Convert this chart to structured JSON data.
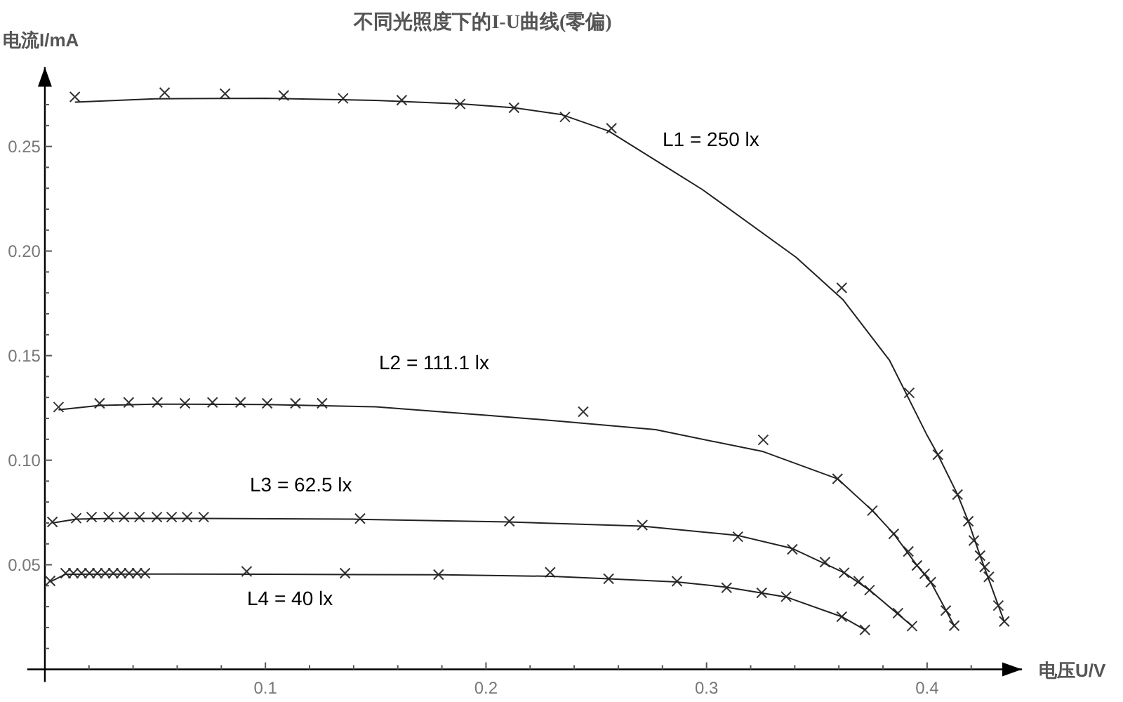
{
  "chart_data": {
    "type": "scatter",
    "title": "不同光照度下的I-U曲线(零偏)",
    "xlabel": "电压U/V",
    "ylabel": "电流I/mA",
    "xlim": [
      -0.008,
      0.443
    ],
    "ylim": [
      -0.006,
      0.288
    ],
    "xticks": [
      {
        "value": 0.02,
        "label": null
      },
      {
        "value": 0.04,
        "label": null
      },
      {
        "value": 0.06,
        "label": null
      },
      {
        "value": 0.08,
        "label": null
      },
      0.1,
      {
        "value": 0.12,
        "label": null
      },
      {
        "value": 0.14,
        "label": null
      },
      {
        "value": 0.16,
        "label": null
      },
      {
        "value": 0.18,
        "label": null
      },
      0.2,
      {
        "value": 0.22,
        "label": null
      },
      {
        "value": 0.24,
        "label": null
      },
      {
        "value": 0.26,
        "label": null
      },
      {
        "value": 0.28,
        "label": null
      },
      0.3,
      {
        "value": 0.32,
        "label": null
      },
      {
        "value": 0.34,
        "label": null
      },
      {
        "value": 0.36,
        "label": null
      },
      {
        "value": 0.38,
        "label": null
      },
      0.4,
      {
        "value": 0.42,
        "label": null
      }
    ],
    "yticks": [
      {
        "value": 0.01,
        "label": null
      },
      {
        "value": 0.02,
        "label": null
      },
      {
        "value": 0.03,
        "label": null
      },
      {
        "value": 0.04,
        "label": null
      },
      {
        "value": 0.05,
        "label": "0.05"
      },
      {
        "value": 0.06,
        "label": null
      },
      {
        "value": 0.07,
        "label": null
      },
      {
        "value": 0.08,
        "label": null
      },
      {
        "value": 0.09,
        "label": null
      },
      {
        "value": 0.1,
        "label": "0.10"
      },
      {
        "value": 0.11,
        "label": null
      },
      {
        "value": 0.12,
        "label": null
      },
      {
        "value": 0.13,
        "label": null
      },
      {
        "value": 0.14,
        "label": null
      },
      0.15,
      {
        "value": 0.16,
        "label": null
      },
      {
        "value": 0.17,
        "label": null
      },
      {
        "value": 0.18,
        "label": null
      },
      {
        "value": 0.19,
        "label": null
      },
      {
        "value": 0.2,
        "label": "0.20"
      },
      {
        "value": 0.21,
        "label": null
      },
      {
        "value": 0.22,
        "label": null
      },
      {
        "value": 0.23,
        "label": null
      },
      {
        "value": 0.24,
        "label": null
      },
      0.25,
      {
        "value": 0.26,
        "label": null
      },
      {
        "value": 0.27,
        "label": null
      }
    ],
    "marker": "cross",
    "series": [
      {
        "color": "#333333",
        "x": [
          0.0136,
          0.0543,
          0.0817,
          0.1083,
          0.1352,
          0.1618,
          0.1883,
          0.2127,
          0.2358,
          0.2569,
          0.3613,
          0.3919,
          0.4049,
          0.4138,
          0.4187,
          0.4212,
          0.424,
          0.4261,
          0.428,
          0.4323,
          0.435
        ],
        "values": [
          0.2737,
          0.2757,
          0.2752,
          0.2744,
          0.273,
          0.2721,
          0.2703,
          0.2685,
          0.2641,
          0.2587,
          0.1824,
          0.1322,
          0.1026,
          0.0836,
          0.0708,
          0.0616,
          0.0544,
          0.0489,
          0.0442,
          0.0305,
          0.0229
        ]
      },
      {
        "type": "line",
        "marker": "none",
        "color": "#222222",
        "x": [
          0.0136,
          0.05,
          0.1,
          0.15,
          0.19,
          0.2127,
          0.2344,
          0.2556,
          0.2981,
          0.3406,
          0.3618,
          0.383,
          0.4,
          0.4049,
          0.4138,
          0.4187,
          0.424,
          0.4323,
          0.435
        ],
        "values": [
          0.2712,
          0.2728,
          0.273,
          0.272,
          0.2703,
          0.2685,
          0.2652,
          0.2574,
          0.2294,
          0.197,
          0.1768,
          0.1477,
          0.1119,
          0.1026,
          0.0836,
          0.0708,
          0.0544,
          0.0305,
          0.0229
        ]
      },
      {
        "color": "#333333",
        "x": [
          0.0062,
          0.0248,
          0.038,
          0.051,
          0.0635,
          0.076,
          0.0887,
          0.1008,
          0.1136,
          0.1257,
          0.2441,
          0.3257,
          0.3594,
          0.3752,
          0.3849,
          0.3915,
          0.3954,
          0.3989,
          0.4017,
          0.4085,
          0.4123
        ],
        "values": [
          0.1254,
          0.1272,
          0.1276,
          0.1276,
          0.1272,
          0.1276,
          0.1276,
          0.1272,
          0.1272,
          0.1272,
          0.1232,
          0.1097,
          0.0911,
          0.0759,
          0.0648,
          0.0564,
          0.0497,
          0.0457,
          0.0417,
          0.0281,
          0.0209
        ]
      },
      {
        "type": "line",
        "marker": "none",
        "color": "#222222",
        "x": [
          0.0062,
          0.025,
          0.05,
          0.1,
          0.15,
          0.2,
          0.2344,
          0.2769,
          0.3257,
          0.3594,
          0.3752,
          0.3849,
          0.3954,
          0.4017,
          0.4123
        ],
        "values": [
          0.1241,
          0.1262,
          0.1268,
          0.1266,
          0.1255,
          0.1215,
          0.1186,
          0.1146,
          0.1041,
          0.0911,
          0.0759,
          0.0648,
          0.0497,
          0.0417,
          0.0209
        ]
      },
      {
        "color": "#333333",
        "x": [
          0.0034,
          0.0142,
          0.0212,
          0.0289,
          0.0359,
          0.0429,
          0.0508,
          0.0575,
          0.0645,
          0.072,
          0.1429,
          0.2106,
          0.2709,
          0.3142,
          0.3389,
          0.3537,
          0.3624,
          0.369,
          0.3739,
          0.3868,
          0.3932
        ],
        "values": [
          0.0705,
          0.0723,
          0.0728,
          0.0728,
          0.0728,
          0.0728,
          0.0728,
          0.0728,
          0.0728,
          0.0728,
          0.0721,
          0.0708,
          0.069,
          0.0634,
          0.0574,
          0.0513,
          0.0462,
          0.0421,
          0.0379,
          0.0269,
          0.0207
        ]
      },
      {
        "type": "line",
        "marker": "none",
        "color": "#222222",
        "x": [
          0.0034,
          0.0142,
          0.03,
          0.07,
          0.14,
          0.21,
          0.2709,
          0.3142,
          0.3389,
          0.3624,
          0.3739,
          0.3932
        ],
        "values": [
          0.07,
          0.0718,
          0.0722,
          0.0722,
          0.0718,
          0.0705,
          0.0685,
          0.064,
          0.0578,
          0.0462,
          0.0379,
          0.0207
        ]
      },
      {
        "color": "#333333",
        "x": [
          0.0024,
          0.0094,
          0.0129,
          0.0166,
          0.0202,
          0.0238,
          0.0274,
          0.031,
          0.0346,
          0.0382,
          0.0418,
          0.0454,
          0.0915,
          0.1361,
          0.1785,
          0.2291,
          0.2556,
          0.2866,
          0.3091,
          0.325,
          0.3361,
          0.3613,
          0.3718
        ],
        "values": [
          0.0423,
          0.046,
          0.046,
          0.046,
          0.046,
          0.046,
          0.046,
          0.046,
          0.046,
          0.046,
          0.046,
          0.046,
          0.0468,
          0.046,
          0.0453,
          0.0464,
          0.0433,
          0.0421,
          0.039,
          0.0366,
          0.0348,
          0.0252,
          0.0189
        ]
      },
      {
        "type": "line",
        "marker": "none",
        "color": "#222222",
        "x": [
          0.0024,
          0.0094,
          0.04,
          0.1,
          0.18,
          0.23,
          0.2556,
          0.2866,
          0.3091,
          0.3361,
          0.3613,
          0.3718
        ],
        "values": [
          0.0418,
          0.0455,
          0.0456,
          0.0455,
          0.0452,
          0.0445,
          0.0433,
          0.0418,
          0.0393,
          0.0346,
          0.0252,
          0.0189
        ]
      }
    ],
    "annotations": [
      "L1 = 250 lx",
      "L2 = 111.1 lx",
      "L3 = 62.5 lx",
      "L4 = 40 lx"
    ]
  }
}
